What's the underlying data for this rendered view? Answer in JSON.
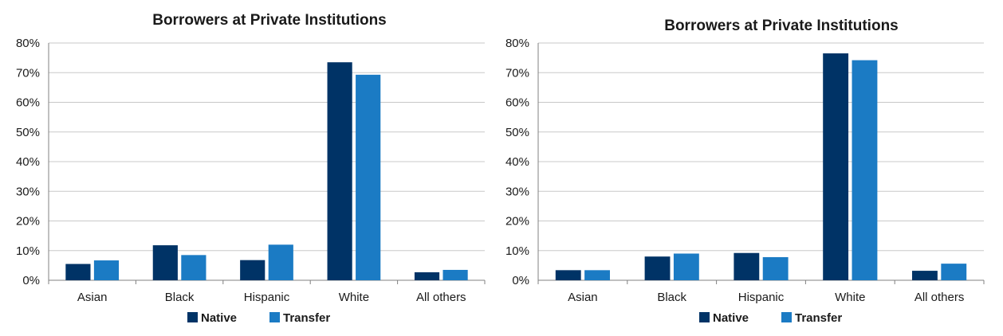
{
  "colors": {
    "native": "#003366",
    "transfer": "#1b7bc4",
    "grid": "#c8c8c8",
    "axis": "#808080"
  },
  "chart_data": [
    {
      "type": "bar",
      "title": "Borrowers at Private Institutions",
      "categories": [
        "Asian",
        "Black",
        "Hispanic",
        "White",
        "All others"
      ],
      "series": [
        {
          "name": "Native",
          "values": [
            5.5,
            11.8,
            6.8,
            73.5,
            2.7
          ]
        },
        {
          "name": "Transfer",
          "values": [
            6.7,
            8.5,
            12.0,
            69.3,
            3.5
          ]
        }
      ],
      "ylim": [
        0,
        80
      ],
      "yticks": [
        "0%",
        "10%",
        "20%",
        "30%",
        "40%",
        "50%",
        "60%",
        "70%",
        "80%"
      ],
      "grid": true,
      "legend": "bottom"
    },
    {
      "type": "bar",
      "title": "Borrowers at Private Institutions",
      "categories": [
        "Asian",
        "Black",
        "Hispanic",
        "White",
        "All others"
      ],
      "series": [
        {
          "name": "Native",
          "values": [
            3.4,
            8.0,
            9.2,
            76.5,
            3.2
          ]
        },
        {
          "name": "Transfer",
          "values": [
            3.4,
            9.0,
            7.8,
            74.2,
            5.6
          ]
        }
      ],
      "ylim": [
        0,
        80
      ],
      "yticks": [
        "0%",
        "10%",
        "20%",
        "30%",
        "40%",
        "50%",
        "60%",
        "70%",
        "80%"
      ],
      "grid": true,
      "legend": "bottom"
    }
  ]
}
